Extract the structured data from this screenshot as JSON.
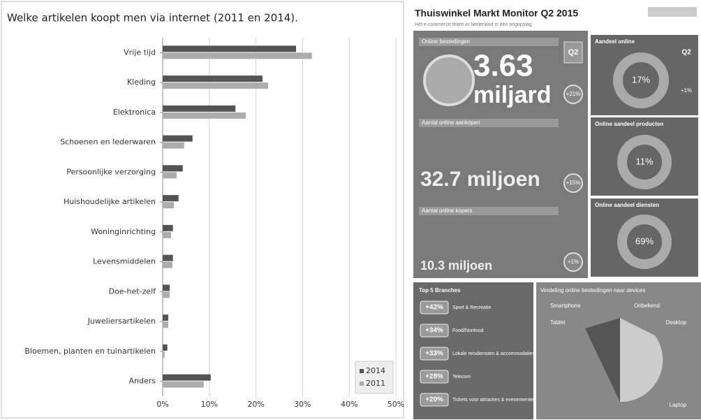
{
  "chart_data": {
    "type": "hbar",
    "title": "Welke artikelen koopt men via internet (2011 en 2014).",
    "categories": [
      "Vrije tijd",
      "Kleding",
      "Elektronica",
      "Schoenen en lederwaren",
      "Persoonlijke verzorging",
      "Huishoudelijke artikelen",
      "Woninginrichting",
      "Levensmiddelen",
      "Doe-het-zelf",
      "Juweliersartikelen",
      "Bloemen, planten en tuinartikelen",
      "Anders"
    ],
    "series": [
      {
        "name": "2014",
        "color": "#545454",
        "values": [
          28.6,
          21.4,
          15.6,
          6.4,
          4.3,
          3.4,
          2.2,
          2.2,
          1.5,
          1.2,
          1.0,
          10.3
        ]
      },
      {
        "name": "2011",
        "color": "#acacac",
        "values": [
          32.0,
          22.6,
          17.8,
          4.6,
          3.0,
          2.4,
          1.8,
          2.1,
          1.5,
          1.2,
          0.4,
          8.8
        ]
      }
    ],
    "xlim": [
      0,
      50
    ],
    "xticks": [
      {
        "value": 0,
        "label": "0%"
      },
      {
        "value": 10,
        "label": "10%"
      },
      {
        "value": 20,
        "label": "20%"
      },
      {
        "value": 30,
        "label": "30%"
      },
      {
        "value": 40,
        "label": "40%"
      },
      {
        "value": 50,
        "label": "50%"
      }
    ],
    "grid": true,
    "legend": "bottom-right"
  },
  "infographic": {
    "title": "Thuiswinkel Markt Monitor Q2 2015",
    "subtitle": "Hét e-commerce feiten in Nederland in één oogopslag",
    "spending": {
      "label": "Online bestedingen",
      "value": "3.63",
      "unit": "miljard",
      "quarter": "Q2",
      "growth": "+21%"
    },
    "purchases": {
      "label": "Aantal online aankopen",
      "value": "32.7 miljoen",
      "growth": "+15%"
    },
    "buyers": {
      "label": "Aantal online kopers",
      "value": "10.3 miljoen",
      "growth": "+1%"
    },
    "share_online": {
      "label": "Aandeel online",
      "value": "17%",
      "quarter": "Q2",
      "growth": "+1%"
    },
    "share_products": {
      "label": "Online aandeel producten",
      "value": "11%"
    },
    "share_services": {
      "label": "Online aandeel diensten",
      "value": "69%"
    },
    "branches": {
      "title": "Top 5 Branches",
      "items": [
        {
          "growth": "+42%",
          "name": "Sport & Recreatie"
        },
        {
          "growth": "+34%",
          "name": "Food/Nonfood"
        },
        {
          "growth": "+33%",
          "name": "Lokale reisdiensten & accommodaties"
        },
        {
          "growth": "+28%",
          "name": "Telecom"
        },
        {
          "growth": "+20%",
          "name": "Tickets voor attracties & evenementen"
        }
      ]
    },
    "devices": {
      "title": "Verdeling online bestedingen naar devices",
      "labels": [
        "Smartphone",
        "Onbekend",
        "Tablet",
        "Desktop",
        "Laptop"
      ]
    }
  }
}
